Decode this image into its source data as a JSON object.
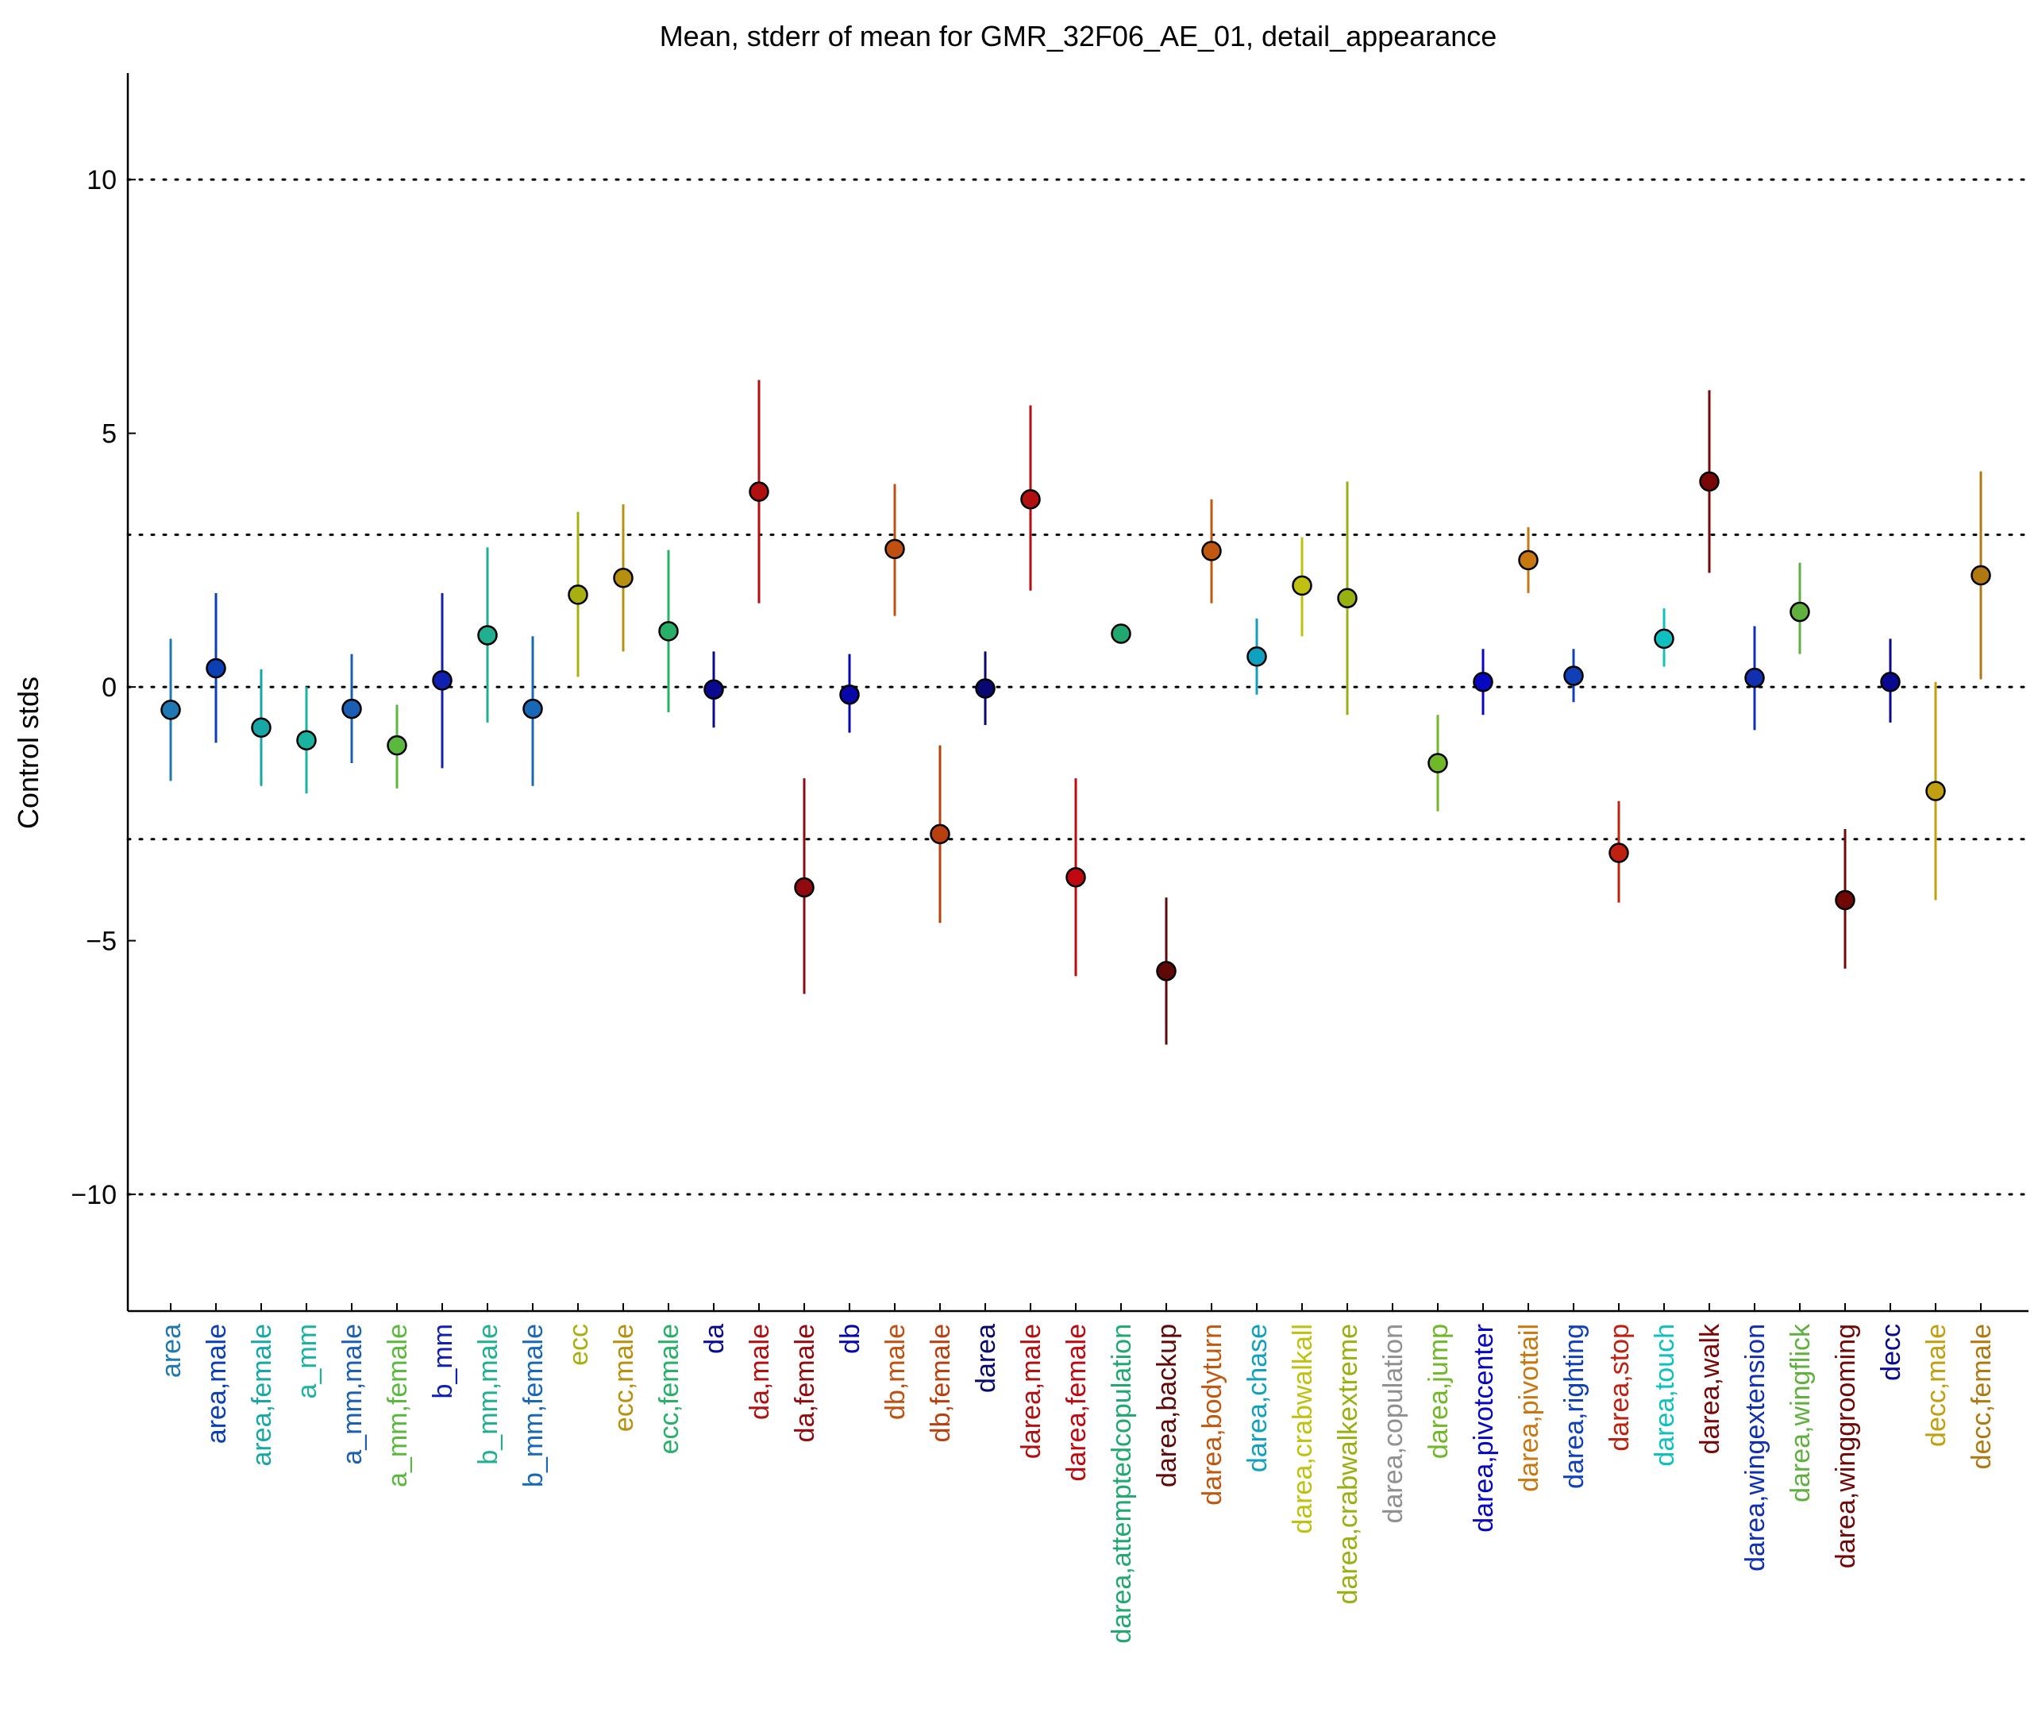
{
  "chart_data": {
    "type": "scatter",
    "title": "Mean, stderr of mean for GMR_32F06_AE_01, detail_appearance",
    "xlabel": "",
    "ylabel": "Control stds",
    "ylim": [
      -12.3,
      12.1
    ],
    "yticks": [
      -10,
      -5,
      0,
      5,
      10
    ],
    "reference_lines": [
      -10,
      -3,
      0,
      3,
      10
    ],
    "grid": false,
    "categories": [
      {
        "label": "area",
        "mean": -0.45,
        "lo": -1.85,
        "hi": 0.95,
        "color": "#1f78b4"
      },
      {
        "label": "area,male",
        "mean": 0.37,
        "lo": -1.1,
        "hi": 1.85,
        "color": "#0b3fb3"
      },
      {
        "label": "area,female",
        "mean": -0.8,
        "lo": -1.95,
        "hi": 0.35,
        "color": "#17a7a7"
      },
      {
        "label": "a_mm",
        "mean": -1.05,
        "lo": -2.1,
        "hi": 0.0,
        "color": "#19b3a0"
      },
      {
        "label": "a_mm,male",
        "mean": -0.43,
        "lo": -1.5,
        "hi": 0.65,
        "color": "#1a5fb4"
      },
      {
        "label": "a_mm,female",
        "mean": -1.15,
        "lo": -2.0,
        "hi": -0.35,
        "color": "#5bb83f"
      },
      {
        "label": "b_mm",
        "mean": 0.13,
        "lo": -1.6,
        "hi": 1.85,
        "color": "#1020b0"
      },
      {
        "label": "b_mm,male",
        "mean": 1.02,
        "lo": -0.7,
        "hi": 2.75,
        "color": "#20b090"
      },
      {
        "label": "b_mm,female",
        "mean": -0.43,
        "lo": -1.95,
        "hi": 1.0,
        "color": "#1868b8"
      },
      {
        "label": "ecc",
        "mean": 1.82,
        "lo": 0.2,
        "hi": 3.45,
        "color": "#a8b010"
      },
      {
        "label": "ecc,male",
        "mean": 2.15,
        "lo": 0.7,
        "hi": 3.6,
        "color": "#b89010"
      },
      {
        "label": "ecc,female",
        "mean": 1.1,
        "lo": -0.5,
        "hi": 2.7,
        "color": "#28b068"
      },
      {
        "label": "da",
        "mean": -0.05,
        "lo": -0.8,
        "hi": 0.7,
        "color": "#0a0a90"
      },
      {
        "label": "da,male",
        "mean": 3.85,
        "lo": 1.65,
        "hi": 6.05,
        "color": "#b01010"
      },
      {
        "label": "da,female",
        "mean": -3.95,
        "lo": -6.05,
        "hi": -1.8,
        "color": "#900a10"
      },
      {
        "label": "db",
        "mean": -0.15,
        "lo": -0.9,
        "hi": 0.65,
        "color": "#0808a8"
      },
      {
        "label": "db,male",
        "mean": 2.72,
        "lo": 1.4,
        "hi": 4.0,
        "color": "#c05010"
      },
      {
        "label": "db,female",
        "mean": -2.9,
        "lo": -4.65,
        "hi": -1.15,
        "color": "#b84010"
      },
      {
        "label": "darea",
        "mean": -0.03,
        "lo": -0.75,
        "hi": 0.7,
        "color": "#080870"
      },
      {
        "label": "darea,male",
        "mean": 3.7,
        "lo": 1.9,
        "hi": 5.55,
        "color": "#b01010"
      },
      {
        "label": "darea,female",
        "mean": -3.75,
        "lo": -5.7,
        "hi": -1.8,
        "color": "#c00810"
      },
      {
        "label": "darea,attemptedcopulation",
        "mean": 1.05,
        "lo": 1.05,
        "hi": 1.05,
        "color": "#20a870"
      },
      {
        "label": "darea,backup",
        "mean": -5.6,
        "lo": -7.05,
        "hi": -4.15,
        "color": "#600808"
      },
      {
        "label": "darea,bodyturn",
        "mean": 2.68,
        "lo": 1.65,
        "hi": 3.7,
        "color": "#c05810"
      },
      {
        "label": "darea,chase",
        "mean": 0.6,
        "lo": -0.15,
        "hi": 1.35,
        "color": "#10a0c0"
      },
      {
        "label": "darea,crabwalkall",
        "mean": 2.0,
        "lo": 1.0,
        "hi": 2.95,
        "color": "#c0c010"
      },
      {
        "label": "darea,crabwalkextreme",
        "mean": 1.75,
        "lo": -0.55,
        "hi": 4.05,
        "color": "#98b010"
      },
      {
        "label": "darea,copulation",
        "mean": null,
        "lo": null,
        "hi": null,
        "color": "#909090"
      },
      {
        "label": "darea,jump",
        "mean": -1.5,
        "lo": -2.45,
        "hi": -0.55,
        "color": "#70b828"
      },
      {
        "label": "darea,pivotcenter",
        "mean": 0.1,
        "lo": -0.55,
        "hi": 0.75,
        "color": "#0808c0"
      },
      {
        "label": "darea,pivottail",
        "mean": 2.5,
        "lo": 1.85,
        "hi": 3.15,
        "color": "#c87810"
      },
      {
        "label": "darea,righting",
        "mean": 0.22,
        "lo": -0.3,
        "hi": 0.75,
        "color": "#1040b8"
      },
      {
        "label": "darea,stop",
        "mean": -3.27,
        "lo": -4.25,
        "hi": -2.25,
        "color": "#c02010"
      },
      {
        "label": "darea,touch",
        "mean": 0.95,
        "lo": 0.4,
        "hi": 1.55,
        "color": "#10c0c0"
      },
      {
        "label": "darea,walk",
        "mean": 4.05,
        "lo": 2.25,
        "hi": 5.85,
        "color": "#780808"
      },
      {
        "label": "darea,wingextension",
        "mean": 0.18,
        "lo": -0.85,
        "hi": 1.2,
        "color": "#1030b0"
      },
      {
        "label": "darea,wingflick",
        "mean": 1.48,
        "lo": 0.65,
        "hi": 2.45,
        "color": "#60b040"
      },
      {
        "label": "darea,winggrooming",
        "mean": -4.2,
        "lo": -5.55,
        "hi": -2.8,
        "color": "#700808"
      },
      {
        "label": "decc",
        "mean": 0.1,
        "lo": -0.7,
        "hi": 0.95,
        "color": "#080890"
      },
      {
        "label": "decc,male",
        "mean": -2.05,
        "lo": -4.2,
        "hi": 0.1,
        "color": "#c0a010"
      },
      {
        "label": "decc,female",
        "mean": 2.2,
        "lo": 0.15,
        "hi": 4.25,
        "color": "#b07810"
      }
    ]
  }
}
